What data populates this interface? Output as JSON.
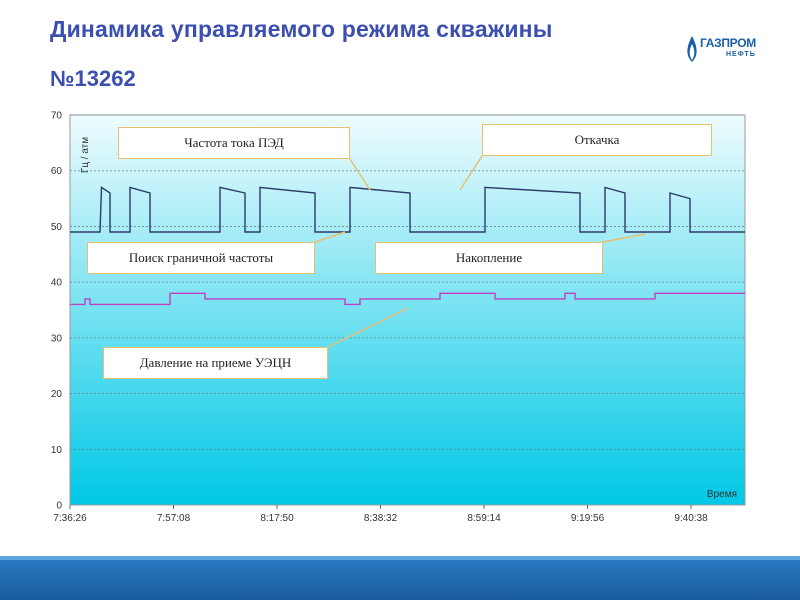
{
  "header": {
    "title": "Динамика управляемого режима скважины",
    "subtitle": "№13262",
    "logo_text": "ГАЗПРОМ",
    "logo_sub": "НЕФТЬ"
  },
  "colors": {
    "title": "#3b4fb0",
    "freq_line": "#2a3a6a",
    "pressure_line": "#c040c0",
    "annotation_border": "#e8c070",
    "annotation_leader": "#e8c070",
    "plot_top": "#eefcfe",
    "plot_bottom": "#00c8e6"
  },
  "chart_data": {
    "type": "line",
    "title": "",
    "xlabel": "Время",
    "ylabel": "Гц / атм",
    "ylim": [
      0,
      70
    ],
    "yticks": [
      0,
      10,
      20,
      30,
      40,
      50,
      60,
      70
    ],
    "xlim": [
      "7:36:26",
      "9:52:00"
    ],
    "xticks": [
      "7:36:26",
      "7:57:08",
      "8:17:50",
      "8:38:32",
      "8:59:14",
      "9:19:56",
      "9:40:38"
    ],
    "grid": true,
    "series": [
      {
        "name": "Частота тока ПЭД",
        "color": "#2a3a6a",
        "x_minutes": [
          0,
          6,
          6.3,
          8,
          8,
          12,
          12,
          16,
          16,
          22,
          22,
          30,
          30,
          35,
          35,
          38,
          38,
          49,
          49,
          56,
          56,
          68,
          68,
          75,
          75,
          83,
          83,
          102,
          102,
          107,
          107,
          111,
          111,
          120,
          120,
          124,
          124,
          135
        ],
        "y_values": [
          49,
          49,
          57,
          56,
          49,
          49,
          57,
          56,
          49,
          49,
          49,
          49,
          57,
          56,
          49,
          49,
          57,
          56,
          49,
          49,
          57,
          56,
          49,
          49,
          49,
          49,
          57,
          56,
          49,
          49,
          57,
          56,
          49,
          49,
          56,
          55,
          49,
          49
        ]
      },
      {
        "name": "Давление на приеме УЭЦН",
        "color": "#c040c0",
        "x_minutes": [
          0,
          3,
          3,
          4,
          4,
          20,
          20,
          27,
          27,
          33,
          33,
          55,
          55,
          58,
          58,
          74,
          74,
          85,
          85,
          99,
          99,
          101,
          101,
          117,
          117,
          135
        ],
        "y_values": [
          36,
          36,
          37,
          37,
          36,
          36,
          38,
          38,
          37,
          37,
          37,
          37,
          36,
          36,
          37,
          37,
          38,
          38,
          37,
          37,
          38,
          38,
          37,
          37,
          38,
          38
        ]
      }
    ],
    "annotations": [
      {
        "label": "Частота тока ПЭД"
      },
      {
        "label": "Откачка"
      },
      {
        "label": "Поиск граничной частоты"
      },
      {
        "label": "Накопление"
      },
      {
        "label": "Давление на приеме УЭЦН"
      }
    ]
  }
}
